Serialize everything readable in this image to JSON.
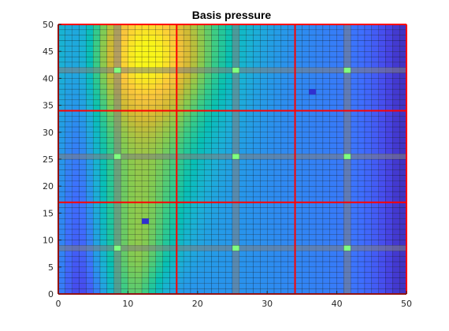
{
  "chart_data": {
    "type": "heatmap",
    "title": "Basis pressure",
    "xlabel": "",
    "ylabel": "",
    "xlim": [
      0,
      50
    ],
    "ylim": [
      0,
      50
    ],
    "x_ticks": [
      0,
      10,
      20,
      30,
      40,
      50
    ],
    "y_ticks": [
      0,
      5,
      10,
      15,
      20,
      25,
      30,
      35,
      40,
      45,
      50
    ],
    "x_tick_labels": [
      "0",
      "10",
      "20",
      "30",
      "40",
      "50"
    ],
    "y_tick_labels": [
      "0",
      "5",
      "10",
      "15",
      "20",
      "25",
      "30",
      "35",
      "40",
      "45",
      "50"
    ],
    "grid_cells": [
      50,
      50
    ],
    "colormap": "parula",
    "coarse_block_boundaries_x": [
      0,
      17,
      34,
      50
    ],
    "coarse_block_boundaries_y": [
      0,
      17,
      34,
      50
    ],
    "fine_partition_lines": [
      8.5,
      25.5,
      41.5
    ],
    "fine_partition_markers": [
      [
        8.5,
        8.5
      ],
      [
        25.5,
        8.5
      ],
      [
        41.5,
        8.5
      ],
      [
        8.5,
        25.5
      ],
      [
        25.5,
        25.5
      ],
      [
        41.5,
        25.5
      ],
      [
        8.5,
        41.5
      ],
      [
        25.5,
        41.5
      ],
      [
        41.5,
        41.5
      ]
    ],
    "source_points": [
      [
        12.5,
        13.5
      ],
      [
        36.5,
        37.5
      ]
    ],
    "colors": {
      "coarse_grid": "#ff0000",
      "fine_partition": "#808080",
      "marker": "#80ff80",
      "source": "#3030d0",
      "cell_edge": "#000000"
    }
  }
}
